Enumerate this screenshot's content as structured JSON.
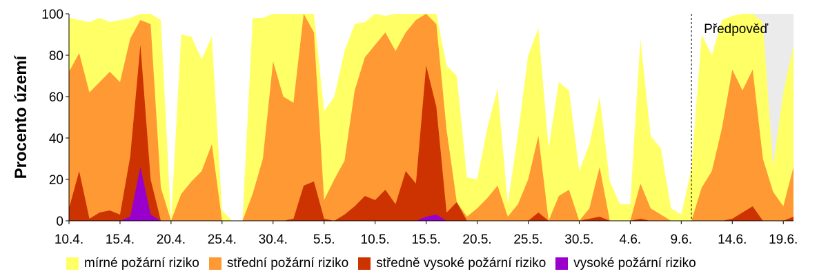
{
  "chart_data": {
    "type": "area",
    "stacked": false,
    "x_start": "10.4.",
    "x_end": "19.6.",
    "xticks": [
      "10.4.",
      "15.4.",
      "20.4.",
      "25.4.",
      "30.4.",
      "5.5.",
      "10.5.",
      "15.5.",
      "20.5.",
      "25.5.",
      "30.5.",
      "4.6.",
      "9.6.",
      "14.6.",
      "19.6."
    ],
    "ylabel": "Procento území",
    "ylim": [
      0,
      100
    ],
    "yticks": [
      0,
      20,
      40,
      60,
      80,
      100
    ],
    "grid": false,
    "legend_position": "bottom",
    "forecast": {
      "label": "Předpověď",
      "start": "10.6.",
      "shaded_start": "16.6.",
      "shade_color": "#ebebeb"
    },
    "series": [
      {
        "name": "mírné požární riziko",
        "color": "#ffff66",
        "values": [
          98,
          97,
          96,
          98,
          96,
          97,
          98,
          100,
          100,
          97,
          0,
          90,
          89,
          78,
          89,
          5,
          0,
          0,
          98,
          98,
          100,
          100,
          100,
          100,
          100,
          53,
          60,
          82,
          95,
          96,
          100,
          99,
          100,
          100,
          100,
          100,
          100,
          75,
          70,
          21,
          20,
          45,
          64,
          8,
          42,
          80,
          93,
          35,
          67,
          63,
          24,
          37,
          60,
          19,
          8,
          8,
          88,
          41,
          35,
          6,
          3,
          25,
          90,
          80,
          97,
          99,
          100,
          100,
          96,
          26,
          62,
          85
        ]
      },
      {
        "name": "střední požární riziko",
        "color": "#ff9933",
        "values": [
          72,
          81,
          62,
          67,
          72,
          67,
          88,
          97,
          95,
          16,
          0,
          13,
          19,
          24,
          37,
          0,
          0,
          0,
          13,
          30,
          77,
          60,
          57,
          100,
          91,
          10,
          20,
          29,
          63,
          79,
          85,
          91,
          82,
          91,
          97,
          100,
          95,
          44,
          9,
          2,
          6,
          11,
          17,
          2,
          8,
          20,
          41,
          0,
          12,
          15,
          0,
          6,
          26,
          0,
          0,
          0,
          18,
          6,
          3,
          0,
          0,
          0,
          16,
          24,
          45,
          73,
          63,
          73,
          30,
          14,
          7,
          26
        ]
      },
      {
        "name": "středně vysoké požární riziko",
        "color": "#cc3300",
        "values": [
          6,
          24,
          1,
          4,
          5,
          3,
          31,
          85,
          20,
          0,
          0,
          0,
          0,
          0,
          0,
          0,
          0,
          0,
          0,
          0,
          0,
          0,
          1,
          17,
          19,
          1,
          0,
          3,
          7,
          12,
          10,
          15,
          8,
          24,
          18,
          75,
          55,
          4,
          9,
          0,
          0,
          0,
          0,
          0,
          0,
          0,
          4,
          0,
          0,
          0,
          0,
          1,
          2,
          0,
          0,
          0,
          1,
          0,
          0,
          0,
          0,
          0,
          0,
          0,
          0,
          1,
          4,
          7,
          0,
          0,
          0,
          2
        ]
      },
      {
        "name": "vysoké požární riziko",
        "color": "#9900cc",
        "values": [
          0,
          0,
          0,
          0,
          0,
          0,
          2,
          26,
          3,
          0,
          0,
          0,
          0,
          0,
          0,
          0,
          0,
          0,
          0,
          0,
          0,
          0,
          0,
          0,
          0,
          0,
          0,
          0,
          0,
          0,
          0,
          0,
          0,
          0,
          0,
          2,
          3,
          0,
          0,
          0,
          0,
          0,
          0,
          0,
          0,
          0,
          0,
          0,
          0,
          0,
          0,
          0,
          0,
          0,
          0,
          0,
          0,
          0,
          0,
          0,
          0,
          0,
          0,
          0,
          0,
          0,
          0,
          0,
          0,
          0,
          0,
          0
        ]
      }
    ]
  }
}
